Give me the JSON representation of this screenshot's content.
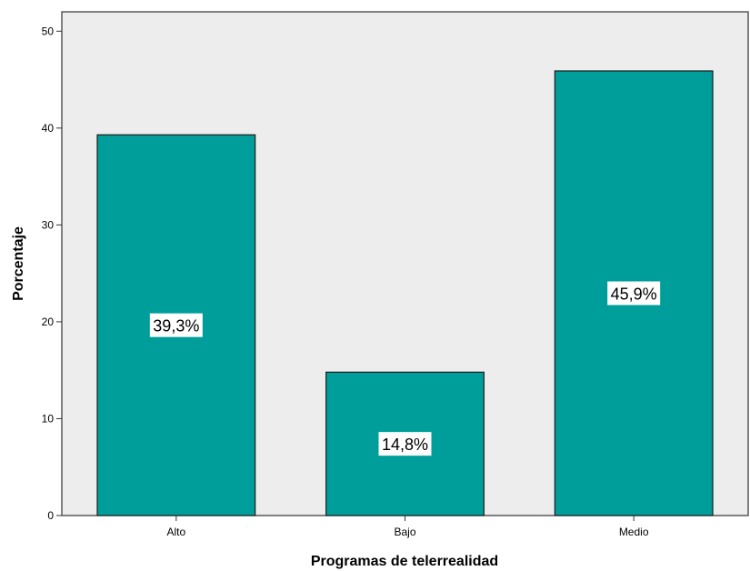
{
  "chart_data": {
    "type": "bar",
    "title": "",
    "xlabel": "Programas de telerrealidad",
    "ylabel": "Porcentaje",
    "categories": [
      "Alto",
      "Bajo",
      "Medio"
    ],
    "values": [
      39.3,
      14.8,
      45.9
    ],
    "data_labels": [
      "39,3%",
      "14,8%",
      "45,9%"
    ],
    "ylim": [
      0,
      52
    ],
    "yticks": [
      0,
      10,
      20,
      30,
      40,
      50
    ],
    "grid": false,
    "legend": "none",
    "colors": {
      "bar": "#009E9A",
      "bar_outline": "#1a1a1a",
      "plot_background": "#EDEDED",
      "page_background": "#FFFFFF",
      "label_box": "#FFFFFF"
    }
  }
}
